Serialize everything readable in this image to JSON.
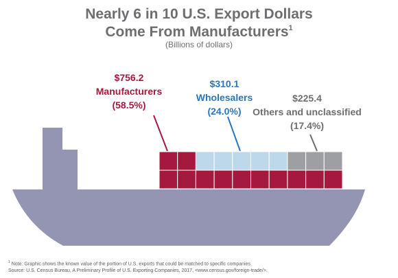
{
  "header": {
    "title_line1": "Nearly 6 in 10 U.S. Export Dollars",
    "title_line2": "Come From Manufacturers",
    "title_sup": "1",
    "subtitle": "(Billions of dollars)"
  },
  "chart_data": {
    "type": "pie",
    "units": "Billions of dollars",
    "categories": [
      {
        "name": "Manufacturers",
        "amount_label": "$756.2",
        "percent_label": "(58.5%)",
        "value": 756.2,
        "percent": 58.5,
        "color": "#a6193e"
      },
      {
        "name": "Wholesalers",
        "amount_label": "$310.1",
        "percent_label": "(24.0%)",
        "value": 310.1,
        "percent": 24.0,
        "color": "#2b76bb"
      },
      {
        "name": "Others and unclassified",
        "amount_label": "$225.4",
        "percent_label": "(17.4%)",
        "value": 225.4,
        "percent": 17.4,
        "color": "#6d6e71"
      }
    ],
    "container_colors": {
      "Manufacturers": "#a6193e",
      "Wholesalers": "#bdd7eb",
      "Others and unclassified": "#9d9fa2"
    },
    "ship_color": "#9395b3",
    "top_row_containers": {
      "Manufacturers": 2,
      "Wholesalers": 5,
      "Others and unclassified": 3
    },
    "bottom_row_containers": 10
  },
  "footnote": {
    "sup": "1",
    "note": " Note: Graphic shows the known value of the portion of U.S. exports that could be matched to specific companies.",
    "source": "Source: U.S. Census Bureau, A Preliminary Profile of U.S. Exporting Companies, 2017, <www.census.gov/foreign-trade/>."
  }
}
